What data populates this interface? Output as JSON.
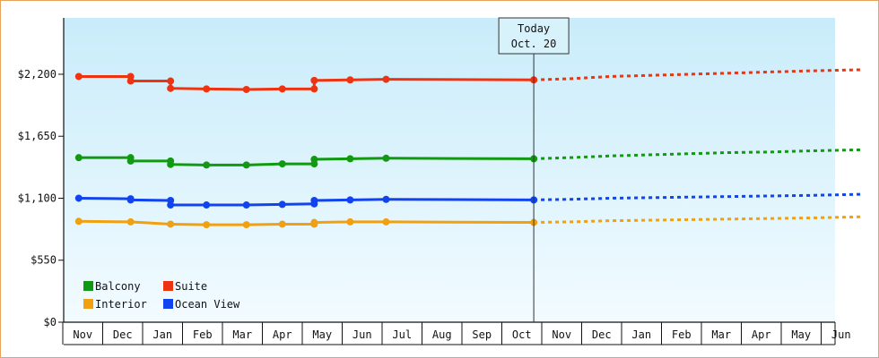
{
  "chart_data": {
    "type": "line",
    "title": "",
    "xlabel": "",
    "ylabel": "",
    "ylim": [
      0,
      2700
    ],
    "y_ticks": [
      0,
      550,
      1100,
      1650,
      2200
    ],
    "y_tick_labels": [
      "$0",
      "$550",
      "$1,100",
      "$1,650",
      "$2,200"
    ],
    "categories": [
      "Nov",
      "Dec",
      "Jan",
      "Feb",
      "Mar",
      "Apr",
      "May",
      "Jun",
      "Jul",
      "Aug",
      "Sep",
      "Oct",
      "Nov",
      "Dec",
      "Jan",
      "Feb",
      "Mar",
      "Apr",
      "May",
      "Jun"
    ],
    "grid": false,
    "legend_position": "bottom-left",
    "today_marker": {
      "line1": "Today",
      "line2": "Oct. 20",
      "x": 11.3
    },
    "series": [
      {
        "name": "Balcony",
        "color": "#119911",
        "history": [
          [
            -0.1,
            1460
          ],
          [
            1.2,
            1460
          ],
          [
            1.2,
            1430
          ],
          [
            2.2,
            1430
          ],
          [
            2.2,
            1400
          ],
          [
            3.1,
            1395
          ],
          [
            4.1,
            1395
          ],
          [
            5.0,
            1405
          ],
          [
            5.8,
            1405
          ],
          [
            5.8,
            1445
          ],
          [
            6.7,
            1450
          ],
          [
            7.6,
            1455
          ],
          [
            11.3,
            1450
          ]
        ],
        "markers": [
          [
            -0.1,
            1460
          ],
          [
            1.2,
            1460
          ],
          [
            1.2,
            1430
          ],
          [
            2.2,
            1430
          ],
          [
            2.2,
            1400
          ],
          [
            3.1,
            1395
          ],
          [
            4.1,
            1395
          ],
          [
            5.0,
            1405
          ],
          [
            5.8,
            1405
          ],
          [
            5.8,
            1445
          ],
          [
            6.7,
            1450
          ],
          [
            7.6,
            1455
          ],
          [
            11.3,
            1450
          ]
        ],
        "forecast": [
          [
            11.3,
            1450
          ],
          [
            12.2,
            1460
          ],
          [
            13.2,
            1475
          ],
          [
            14.2,
            1485
          ],
          [
            15.2,
            1495
          ],
          [
            16.2,
            1505
          ],
          [
            17.2,
            1510
          ],
          [
            18.2,
            1520
          ],
          [
            19.5,
            1530
          ]
        ]
      },
      {
        "name": "Suite",
        "color": "#ee3311",
        "history": [
          [
            -0.1,
            2180
          ],
          [
            1.2,
            2180
          ],
          [
            1.2,
            2140
          ],
          [
            2.2,
            2140
          ],
          [
            2.2,
            2075
          ],
          [
            3.1,
            2070
          ],
          [
            4.1,
            2065
          ],
          [
            5.0,
            2070
          ],
          [
            5.8,
            2070
          ],
          [
            5.8,
            2145
          ],
          [
            6.7,
            2150
          ],
          [
            7.6,
            2155
          ],
          [
            11.3,
            2150
          ]
        ],
        "markers": [
          [
            -0.1,
            2180
          ],
          [
            1.2,
            2180
          ],
          [
            1.2,
            2140
          ],
          [
            2.2,
            2140
          ],
          [
            2.2,
            2075
          ],
          [
            3.1,
            2070
          ],
          [
            4.1,
            2065
          ],
          [
            5.0,
            2070
          ],
          [
            5.8,
            2070
          ],
          [
            5.8,
            2145
          ],
          [
            6.7,
            2150
          ],
          [
            7.6,
            2155
          ],
          [
            11.3,
            2150
          ]
        ],
        "forecast": [
          [
            11.3,
            2150
          ],
          [
            12.2,
            2160
          ],
          [
            13.2,
            2180
          ],
          [
            14.2,
            2190
          ],
          [
            15.2,
            2200
          ],
          [
            16.2,
            2210
          ],
          [
            17.2,
            2220
          ],
          [
            18.2,
            2230
          ],
          [
            19.5,
            2240
          ]
        ]
      },
      {
        "name": "Interior",
        "color": "#f0a010",
        "history": [
          [
            -0.1,
            895
          ],
          [
            1.2,
            890
          ],
          [
            2.2,
            870
          ],
          [
            3.1,
            865
          ],
          [
            4.1,
            865
          ],
          [
            5.0,
            870
          ],
          [
            5.8,
            870
          ],
          [
            5.8,
            885
          ],
          [
            6.7,
            890
          ],
          [
            7.6,
            890
          ],
          [
            11.3,
            885
          ]
        ],
        "markers": [
          [
            -0.1,
            895
          ],
          [
            1.2,
            890
          ],
          [
            2.2,
            870
          ],
          [
            3.1,
            865
          ],
          [
            4.1,
            865
          ],
          [
            5.0,
            870
          ],
          [
            5.8,
            870
          ],
          [
            5.8,
            885
          ],
          [
            6.7,
            890
          ],
          [
            7.6,
            890
          ],
          [
            11.3,
            885
          ]
        ],
        "forecast": [
          [
            11.3,
            885
          ],
          [
            12.2,
            890
          ],
          [
            13.2,
            900
          ],
          [
            14.2,
            905
          ],
          [
            15.2,
            910
          ],
          [
            16.2,
            915
          ],
          [
            17.2,
            920
          ],
          [
            18.2,
            925
          ],
          [
            19.5,
            935
          ]
        ]
      },
      {
        "name": "Ocean View",
        "color": "#1144ee",
        "history": [
          [
            -0.1,
            1100
          ],
          [
            1.2,
            1095
          ],
          [
            1.2,
            1085
          ],
          [
            2.2,
            1080
          ],
          [
            2.2,
            1040
          ],
          [
            3.1,
            1040
          ],
          [
            4.1,
            1040
          ],
          [
            5.0,
            1045
          ],
          [
            5.8,
            1050
          ],
          [
            5.8,
            1080
          ],
          [
            6.7,
            1085
          ],
          [
            7.6,
            1090
          ],
          [
            11.3,
            1085
          ]
        ],
        "markers": [
          [
            -0.1,
            1100
          ],
          [
            1.2,
            1095
          ],
          [
            1.2,
            1085
          ],
          [
            2.2,
            1080
          ],
          [
            2.2,
            1040
          ],
          [
            3.1,
            1040
          ],
          [
            4.1,
            1040
          ],
          [
            5.0,
            1045
          ],
          [
            5.8,
            1050
          ],
          [
            5.8,
            1080
          ],
          [
            6.7,
            1085
          ],
          [
            7.6,
            1090
          ],
          [
            11.3,
            1085
          ]
        ],
        "forecast": [
          [
            11.3,
            1085
          ],
          [
            12.2,
            1090
          ],
          [
            13.2,
            1100
          ],
          [
            14.2,
            1105
          ],
          [
            15.2,
            1110
          ],
          [
            16.2,
            1115
          ],
          [
            17.2,
            1120
          ],
          [
            18.2,
            1125
          ],
          [
            19.5,
            1135
          ]
        ]
      }
    ],
    "legend": [
      {
        "label": "Balcony",
        "color": "#119911"
      },
      {
        "label": "Suite",
        "color": "#ee3311"
      },
      {
        "label": "Interior",
        "color": "#f0a010"
      },
      {
        "label": "Ocean View",
        "color": "#1144ee"
      }
    ]
  }
}
